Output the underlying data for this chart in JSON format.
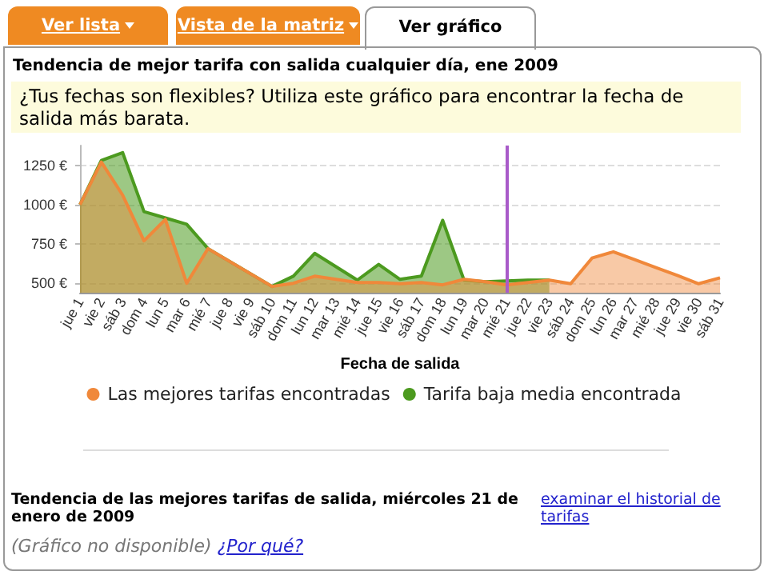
{
  "chart_data": {
    "type": "area",
    "title": "Tendencia de mejor tarifa con salida cualquier día, ene 2009",
    "subtitle": "¿Tus fechas son flexibles? Utiliza este gráfico para encontrar la fecha de salida más barata.",
    "xlabel": "Fecha de salida",
    "categories": [
      "jue 1",
      "vie 2",
      "sáb 3",
      "dom 4",
      "lun 5",
      "mar 6",
      "mié 7",
      "jue 8",
      "vie 9",
      "sáb 10",
      "dom 11",
      "lun 12",
      "mar 13",
      "mié 14",
      "jue 15",
      "vie 16",
      "sáb 17",
      "dom 18",
      "lun 19",
      "mar 20",
      "mié 21",
      "jue 22",
      "vie 23",
      "sáb 24",
      "dom 25",
      "lun 26",
      "mar 27",
      "mié 28",
      "jue 29",
      "vie 30",
      "sáb 31"
    ],
    "series": [
      {
        "name": "Las mejores tarifas encontradas",
        "color": "#f0883a",
        "values": [
          1000,
          1270,
          1060,
          770,
          905,
          500,
          720,
          640,
          560,
          480,
          500,
          545,
          525,
          505,
          505,
          497,
          505,
          490,
          525,
          510,
          490,
          505,
          520,
          497,
          660,
          700,
          650,
          600,
          550,
          497,
          535
        ]
      },
      {
        "name": "Tarifa baja media encontrada",
        "color": "#4c9a1f",
        "values": [
          1000,
          1280,
          1330,
          955,
          915,
          875,
          720,
          640,
          560,
          480,
          545,
          690,
          605,
          520,
          620,
          525,
          545,
          900,
          520,
          510,
          515,
          520,
          520,
          null,
          null,
          null,
          null,
          null,
          null,
          null,
          null
        ]
      }
    ],
    "ylim": [
      440,
      1375
    ],
    "yticks": [
      {
        "value": 500,
        "label": "500 €"
      },
      {
        "value": 750,
        "label": "750 €"
      },
      {
        "value": 1000,
        "label": "1000 €"
      },
      {
        "value": 1250,
        "label": "1250 €"
      }
    ],
    "grid": "y",
    "legend": "bottom",
    "marker": "none",
    "line_style": "solid",
    "ref_lines": [
      {
        "axis": "x",
        "value": "mié 21",
        "color": "#a95bc9"
      }
    ],
    "annotations": [
      "Ver lista",
      "Vista de la matriz",
      "Ver gráfico",
      "Tendencia de las mejores tarifas de salida, miércoles 21 de enero de 2009",
      "examinar el historial de tarifas",
      "(Gráfico no disponible)",
      "¿Por qué?"
    ]
  }
}
